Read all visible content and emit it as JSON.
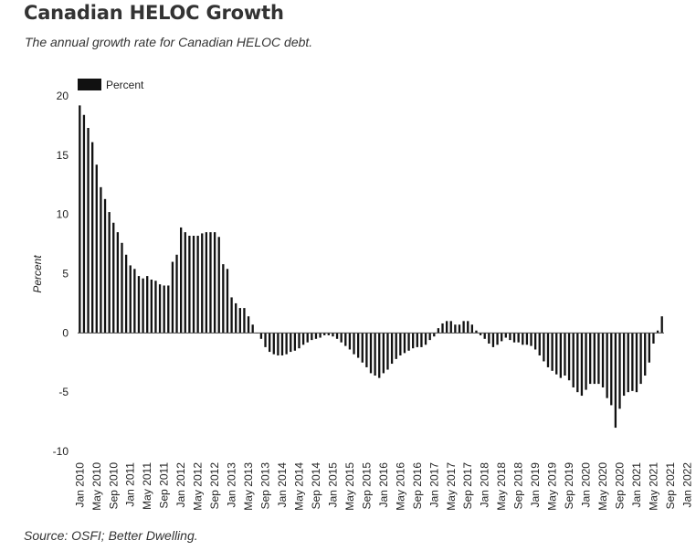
{
  "header": {
    "title": "Canadian HELOC Growth",
    "subtitle": "The annual growth rate for Canadian HELOC debt."
  },
  "footer": {
    "source": "Source: OSFI; Better Dwelling."
  },
  "colors": {
    "bar": "#111111",
    "zero_line": "#444444"
  },
  "chart_data": {
    "type": "bar",
    "title": "Canadian HELOC Growth",
    "ylabel": "Percent",
    "xlabel": "",
    "ylim": [
      -10,
      20
    ],
    "yticks": [
      20,
      15,
      10,
      5,
      0,
      -5,
      -10
    ],
    "legend": {
      "position": "top-left",
      "entries": [
        "Percent"
      ]
    },
    "grid": false,
    "x_start": "Jan 2010",
    "frequency": "monthly",
    "xtick_labels": [
      "Jan 2010",
      "May 2010",
      "Sep 2010",
      "Jan 2011",
      "May 2011",
      "Sep 2011",
      "Jan 2012",
      "May 2012",
      "Sep 2012",
      "Jan 2013",
      "May 2013",
      "Sep 2013",
      "Jan 2014",
      "May 2014",
      "Sep 2014",
      "Jan 2015",
      "May 2015",
      "Sep 2015",
      "Jan 2016",
      "May 2016",
      "Sep 2016",
      "Jan 2017",
      "May 2017",
      "Sep 2017",
      "Jan 2018",
      "May 2018",
      "Sep 2018",
      "Jan 2019",
      "May 2019",
      "Sep 2019",
      "Jan 2020",
      "May 2020",
      "Sep 2020",
      "Jan 2021",
      "May 2021",
      "Sep 2021",
      "Jan 2022"
    ],
    "series": [
      {
        "name": "Percent",
        "values": [
          19.2,
          18.4,
          17.3,
          16.1,
          14.2,
          12.3,
          11.3,
          10.2,
          9.3,
          8.5,
          7.6,
          6.6,
          5.7,
          5.4,
          4.8,
          4.6,
          4.8,
          4.5,
          4.4,
          4.1,
          4.0,
          4.0,
          6.0,
          6.6,
          8.9,
          8.5,
          8.2,
          8.2,
          8.2,
          8.4,
          8.5,
          8.5,
          8.5,
          8.1,
          5.8,
          5.4,
          3.0,
          2.5,
          2.1,
          2.1,
          1.4,
          0.7,
          0.0,
          -0.5,
          -1.2,
          -1.6,
          -1.8,
          -1.9,
          -1.9,
          -1.8,
          -1.6,
          -1.5,
          -1.3,
          -1.0,
          -0.8,
          -0.6,
          -0.5,
          -0.4,
          -0.2,
          -0.2,
          -0.3,
          -0.5,
          -0.8,
          -1.1,
          -1.4,
          -1.8,
          -2.1,
          -2.5,
          -2.9,
          -3.4,
          -3.6,
          -3.8,
          -3.4,
          -3.1,
          -2.6,
          -2.2,
          -1.9,
          -1.7,
          -1.5,
          -1.3,
          -1.2,
          -1.2,
          -1.0,
          -0.6,
          -0.3,
          0.4,
          0.8,
          1.0,
          1.0,
          0.7,
          0.7,
          1.0,
          1.0,
          0.7,
          0.2,
          -0.2,
          -0.5,
          -0.9,
          -1.2,
          -1.0,
          -0.7,
          -0.4,
          -0.6,
          -0.8,
          -0.8,
          -1.0,
          -1.0,
          -1.1,
          -1.4,
          -1.9,
          -2.4,
          -2.9,
          -3.2,
          -3.5,
          -3.8,
          -3.6,
          -4.0,
          -4.6,
          -5.0,
          -5.3,
          -4.8,
          -4.3,
          -4.3,
          -4.3,
          -4.6,
          -5.5,
          -6.1,
          -8.0,
          -6.4,
          -5.3,
          -5.0,
          -4.9,
          -5.0,
          -4.3,
          -3.6,
          -2.5,
          -0.9,
          0.2,
          1.4
        ]
      }
    ]
  }
}
